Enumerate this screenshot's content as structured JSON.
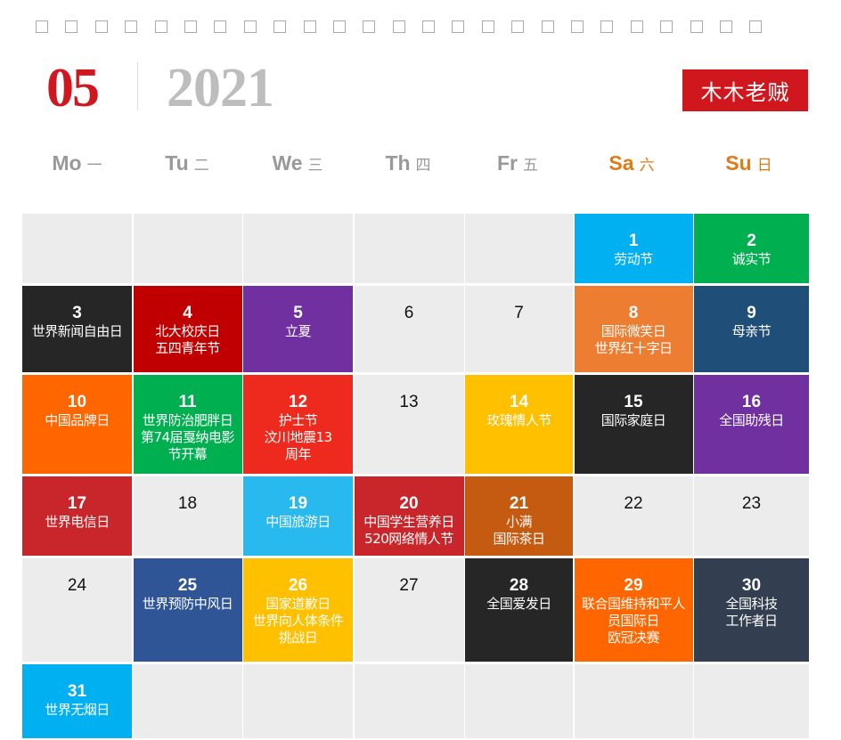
{
  "header": {
    "month": "05",
    "year": "2021",
    "brand": "木木老贼",
    "ring_count": 25
  },
  "colors": {
    "month": "#d0171f",
    "year": "#bdbdbd",
    "brand_bg": "#d1171e",
    "weekend": "#e07a14",
    "weekday": "#999999",
    "empty": "#ececec"
  },
  "weekdays": [
    {
      "en": "Mo",
      "cn": "一"
    },
    {
      "en": "Tu",
      "cn": "二"
    },
    {
      "en": "We",
      "cn": "三"
    },
    {
      "en": "Th",
      "cn": "四"
    },
    {
      "en": "Fr",
      "cn": "五"
    },
    {
      "en": "Sa",
      "cn": "六",
      "weekend": true
    },
    {
      "en": "Su",
      "cn": "日",
      "weekend": true
    }
  ],
  "cells": [
    {},
    {},
    {},
    {},
    {},
    {
      "day": "1",
      "lines": [
        "劳动节"
      ],
      "bg": "#00b0f0"
    },
    {
      "day": "2",
      "lines": [
        "诚实节"
      ],
      "bg": "#00b050"
    },
    {
      "day": "3",
      "lines": [
        "世界新闻自由日"
      ],
      "bg": "#262626"
    },
    {
      "day": "4",
      "lines": [
        "北大校庆日",
        "五四青年节"
      ],
      "bg": "#c00000"
    },
    {
      "day": "5",
      "lines": [
        "立夏"
      ],
      "bg": "#7030a0"
    },
    {
      "day": "6"
    },
    {
      "day": "7"
    },
    {
      "day": "8",
      "lines": [
        "国际微笑日",
        "世界红十字日"
      ],
      "bg": "#ed7d31"
    },
    {
      "day": "9",
      "lines": [
        "母亲节"
      ],
      "bg": "#1f4e79"
    },
    {
      "day": "10",
      "lines": [
        "中国品牌日"
      ],
      "bg": "#ff6600"
    },
    {
      "day": "11",
      "lines": [
        "世界防治肥胖日",
        "第74届戛纳电影",
        "节开幕"
      ],
      "bg": "#00b050"
    },
    {
      "day": "12",
      "lines": [
        "护士节",
        "汶川地震13",
        "周年"
      ],
      "bg": "#ee2a1e"
    },
    {
      "day": "13"
    },
    {
      "day": "14",
      "lines": [
        "玫瑰情人节"
      ],
      "bg": "#ffc000"
    },
    {
      "day": "15",
      "lines": [
        "国际家庭日"
      ],
      "bg": "#262626"
    },
    {
      "day": "16",
      "lines": [
        "全国助残日"
      ],
      "bg": "#7030a0"
    },
    {
      "day": "17",
      "lines": [
        "世界电信日"
      ],
      "bg": "#c9262b"
    },
    {
      "day": "18"
    },
    {
      "day": "19",
      "lines": [
        "中国旅游日"
      ],
      "bg": "#28b9ee"
    },
    {
      "day": "20",
      "lines": [
        "中国学生营养日",
        "520网络情人节"
      ],
      "bg": "#c9262b"
    },
    {
      "day": "21",
      "lines": [
        "小满",
        "国际茶日"
      ],
      "bg": "#c55a11"
    },
    {
      "day": "22"
    },
    {
      "day": "23"
    },
    {
      "day": "24"
    },
    {
      "day": "25",
      "lines": [
        "世界预防中风日"
      ],
      "bg": "#2f5597"
    },
    {
      "day": "26",
      "lines": [
        "国家道歉日",
        "世界向人体条件",
        "挑战日"
      ],
      "bg": "#ffc000"
    },
    {
      "day": "27"
    },
    {
      "day": "28",
      "lines": [
        "全国爱发日"
      ],
      "bg": "#262626"
    },
    {
      "day": "29",
      "lines": [
        "联合国维持和平人",
        "员国际日",
        "欧冠决赛"
      ],
      "bg": "#ff6600"
    },
    {
      "day": "30",
      "lines": [
        "全国科技",
        "工作者日"
      ],
      "bg": "#333f50"
    },
    {
      "day": "31",
      "lines": [
        "世界无烟日"
      ],
      "bg": "#00b0f0"
    },
    {},
    {},
    {},
    {},
    {},
    {}
  ]
}
